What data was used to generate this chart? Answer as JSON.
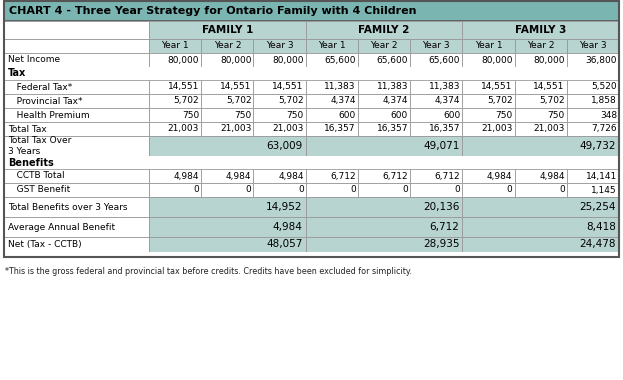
{
  "title": "CHART 4 - Three Year Strategy for Ontario Family with 4 Children",
  "title_bg": "#7ab5b2",
  "header_bg": "#b8d4d0",
  "shaded_bg": "#b8d4d0",
  "white": "#ffffff",
  "border_dark": "#555555",
  "border_light": "#999999",
  "families": [
    "FAMILY 1",
    "FAMILY 2",
    "FAMILY 3"
  ],
  "years": [
    "Year 1",
    "Year 2",
    "Year 3"
  ],
  "rows": [
    {
      "label": "Net Income",
      "indent": 0,
      "type": "data",
      "bold_label": false,
      "values": [
        "80,000",
        "80,000",
        "80,000",
        "65,600",
        "65,600",
        "65,600",
        "80,000",
        "80,000",
        "36,800"
      ]
    },
    {
      "label": "Tax",
      "indent": 0,
      "type": "section",
      "bold_label": true,
      "values": []
    },
    {
      "label": "   Federal Tax*",
      "indent": 0,
      "type": "data",
      "bold_label": false,
      "values": [
        "14,551",
        "14,551",
        "14,551",
        "11,383",
        "11,383",
        "11,383",
        "14,551",
        "14,551",
        "5,520"
      ]
    },
    {
      "label": "   Provincial Tax*",
      "indent": 0,
      "type": "data",
      "bold_label": false,
      "values": [
        "5,702",
        "5,702",
        "5,702",
        "4,374",
        "4,374",
        "4,374",
        "5,702",
        "5,702",
        "1,858"
      ]
    },
    {
      "label": "   Health Premium",
      "indent": 0,
      "type": "data",
      "bold_label": false,
      "values": [
        "750",
        "750",
        "750",
        "600",
        "600",
        "600",
        "750",
        "750",
        "348"
      ]
    },
    {
      "label": "Total Tax",
      "indent": 0,
      "type": "data",
      "bold_label": false,
      "values": [
        "21,003",
        "21,003",
        "21,003",
        "16,357",
        "16,357",
        "16,357",
        "21,003",
        "21,003",
        "7,726"
      ]
    },
    {
      "label": "Total Tax Over\n3 Years",
      "indent": 0,
      "type": "shaded",
      "bold_label": false,
      "values": [
        "",
        "",
        "63,009",
        "",
        "",
        "49,071",
        "",
        "",
        "49,732"
      ]
    },
    {
      "label": "Benefits",
      "indent": 0,
      "type": "section",
      "bold_label": true,
      "values": []
    },
    {
      "label": "   CCTB Total",
      "indent": 0,
      "type": "data",
      "bold_label": false,
      "values": [
        "4,984",
        "4,984",
        "4,984",
        "6,712",
        "6,712",
        "6,712",
        "4,984",
        "4,984",
        "14,141"
      ]
    },
    {
      "label": "   GST Benefit",
      "indent": 0,
      "type": "data",
      "bold_label": false,
      "values": [
        "0",
        "0",
        "0",
        "0",
        "0",
        "0",
        "0",
        "0",
        "1,145"
      ]
    },
    {
      "label": "Total Benefits over 3 Years",
      "indent": 0,
      "type": "shaded",
      "bold_label": false,
      "values": [
        "",
        "",
        "14,952",
        "",
        "",
        "20,136",
        "",
        "",
        "25,254"
      ]
    },
    {
      "label": "Average Annual Benefit",
      "indent": 0,
      "type": "shaded",
      "bold_label": false,
      "values": [
        "",
        "",
        "4,984",
        "",
        "",
        "6,712",
        "",
        "",
        "8,418"
      ]
    },
    {
      "label": "Net (Tax - CCTB)",
      "indent": 0,
      "type": "shaded_gap",
      "bold_label": false,
      "values": [
        "",
        "",
        "48,057",
        "",
        "",
        "28,935",
        "",
        "",
        "24,478"
      ]
    }
  ],
  "footnote": "*This is the gross federal and provincial tax before credits. Credits have been excluded for simplicity."
}
